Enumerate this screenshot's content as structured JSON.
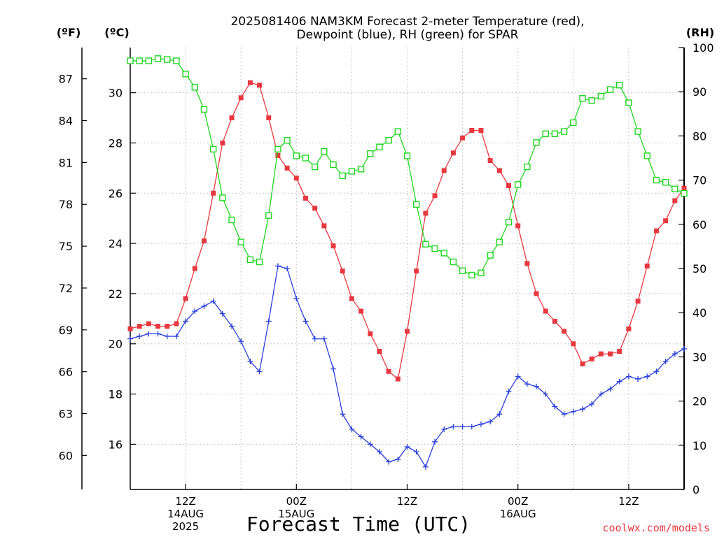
{
  "chart_data": {
    "type": "line",
    "title_line1": "2025081406 NAM3KM Forecast 2-meter Temperature (red),",
    "title_line2": "Dewpoint (blue), RH (green) for SPAR",
    "xlabel": "Forecast Time (UTC)",
    "credit": "coolwx.com/models",
    "units": {
      "fahrenheit": "(ºF)",
      "celsius": "(ºC)",
      "rh": "(RH)"
    },
    "grid": true,
    "x_hours_from_start": {
      "range": [
        0,
        60
      ],
      "step": 1
    },
    "x_ticks": [
      {
        "hour": 6,
        "line1": "12Z",
        "line2": "14AUG",
        "line3": "2025"
      },
      {
        "hour": 18,
        "line1": "00Z",
        "line2": "15AUG",
        "line3": ""
      },
      {
        "hour": 30,
        "line1": "12Z",
        "line2": "",
        "line3": ""
      },
      {
        "hour": 42,
        "line1": "00Z",
        "line2": "16AUG",
        "line3": ""
      },
      {
        "hour": 54,
        "line1": "12Z",
        "line2": "",
        "line3": ""
      }
    ],
    "celsius_axis": {
      "range": [
        14.2,
        31.8
      ],
      "ticks": [
        "16",
        "18",
        "20",
        "22",
        "24",
        "26",
        "28",
        "30"
      ]
    },
    "fahrenheit_ticks": [
      "60",
      "63",
      "66",
      "69",
      "72",
      "75",
      "78",
      "81",
      "84",
      "87"
    ],
    "rh_axis": {
      "range": [
        0,
        100
      ],
      "ticks": [
        "0",
        "10",
        "20",
        "30",
        "40",
        "50",
        "60",
        "70",
        "80",
        "90",
        "100"
      ]
    },
    "series": [
      {
        "name": "Temperature",
        "unit": "C",
        "color": "#e8383f",
        "marker": "filled-square",
        "values": [
          20.6,
          20.7,
          20.8,
          20.7,
          20.7,
          20.8,
          21.8,
          23.0,
          24.1,
          26.0,
          28.0,
          29.0,
          29.8,
          30.4,
          30.3,
          29.0,
          27.5,
          27.0,
          26.6,
          25.8,
          25.4,
          24.7,
          23.9,
          22.9,
          21.8,
          21.3,
          20.4,
          19.7,
          18.9,
          18.6,
          20.5,
          22.9,
          25.2,
          25.9,
          26.9,
          27.6,
          28.2,
          28.5,
          28.5,
          27.3,
          26.9,
          26.3,
          24.7,
          23.2,
          22.0,
          21.3,
          20.9,
          20.5,
          20.0,
          19.2,
          19.4,
          19.6,
          19.6,
          19.7,
          20.6,
          21.7,
          23.1,
          24.5,
          24.9,
          25.7,
          26.2
        ]
      },
      {
        "name": "Dewpoint",
        "unit": "C",
        "color": "#2a3fdc",
        "marker": "plus",
        "values": [
          20.2,
          20.3,
          20.4,
          20.4,
          20.3,
          20.3,
          20.9,
          21.3,
          21.5,
          21.7,
          21.2,
          20.7,
          20.1,
          19.3,
          18.9,
          20.9,
          23.1,
          23.0,
          21.8,
          20.9,
          20.2,
          20.2,
          19.0,
          17.2,
          16.6,
          16.3,
          16.0,
          15.7,
          15.3,
          15.4,
          15.9,
          15.7,
          15.1,
          16.1,
          16.6,
          16.7,
          16.7,
          16.7,
          16.8,
          16.9,
          17.2,
          18.1,
          18.7,
          18.4,
          18.3,
          18.0,
          17.5,
          17.2,
          17.3,
          17.4,
          17.6,
          18.0,
          18.2,
          18.5,
          18.7,
          18.6,
          18.7,
          18.9,
          19.3,
          19.6,
          19.8
        ]
      },
      {
        "name": "RH",
        "unit": "%",
        "color": "#1fd61f",
        "marker": "open-square",
        "values": [
          97,
          97,
          97,
          97.5,
          97.3,
          97,
          94,
          91,
          86,
          77,
          66,
          61,
          56,
          52,
          51.5,
          62,
          77,
          79,
          75.5,
          75,
          73,
          76.5,
          73.5,
          71,
          72,
          72.5,
          76,
          77.5,
          79,
          81,
          75.5,
          64.5,
          55.5,
          54.5,
          53.5,
          51.5,
          49.5,
          48.5,
          49,
          53,
          56,
          60.5,
          69,
          73,
          78.5,
          80.5,
          80.5,
          81,
          83,
          88.5,
          88,
          89,
          90.5,
          91.5,
          87.5,
          81,
          75.5,
          70,
          69.5,
          68,
          67
        ]
      }
    ]
  }
}
